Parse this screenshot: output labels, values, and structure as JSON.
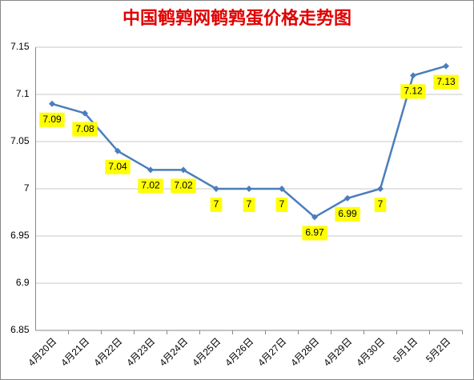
{
  "chart_data": {
    "type": "line",
    "title": "中国鹌鹑网鹌鹑蛋价格走势图",
    "categories": [
      "4月20日",
      "4月21日",
      "4月22日",
      "4月23日",
      "4月24日",
      "4月25日",
      "4月26日",
      "4月27日",
      "4月28日",
      "4月29日",
      "4月30日",
      "5月1日",
      "5月2日"
    ],
    "values": [
      7.09,
      7.08,
      7.04,
      7.02,
      7.02,
      7,
      7,
      7,
      6.97,
      6.99,
      7,
      7.12,
      7.13
    ],
    "color": "#4a7ebb",
    "label_color": "#ffff00",
    "ylim": [
      6.85,
      7.15
    ],
    "yticks": [
      6.85,
      6.9,
      6.95,
      7,
      7.05,
      7.1,
      7.15
    ],
    "grid": true
  }
}
